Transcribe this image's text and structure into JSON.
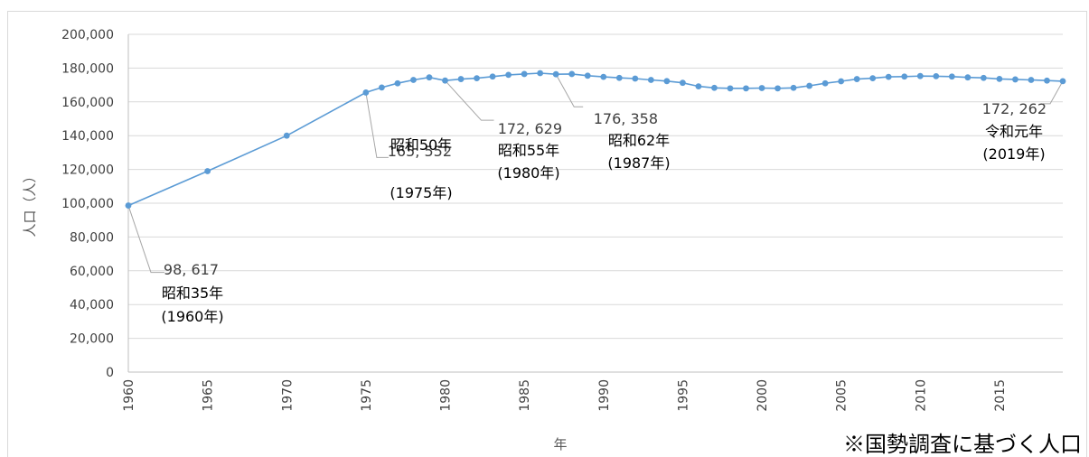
{
  "colors": {
    "series": "#5b9bd5",
    "grid": "#d9d9d9",
    "axis": "#bfbfbf",
    "text": "#404040"
  },
  "footnote": "※国勢調査に基づく人口",
  "chart_data": {
    "type": "line",
    "title": "",
    "xlabel": "年",
    "ylabel": "人口（人）",
    "xlim": [
      1960,
      2019
    ],
    "ylim": [
      0,
      200000
    ],
    "grid": true,
    "markers": true,
    "x_tick_labels": [
      "1960",
      "1965",
      "1970",
      "1975",
      "1980",
      "1985",
      "1990",
      "1995",
      "2000",
      "2005",
      "2010",
      "2015"
    ],
    "y_tick_labels": [
      "0",
      "20,000",
      "40,000",
      "60,000",
      "80,000",
      "100,000",
      "120,000",
      "140,000",
      "160,000",
      "180,000",
      "200,000"
    ],
    "series": [
      {
        "x": [
          1960,
          1965,
          1970,
          1975,
          1976,
          1977,
          1978,
          1979,
          1980,
          1981,
          1982,
          1983,
          1984,
          1985,
          1986,
          1987,
          1988,
          1989,
          1990,
          1991,
          1992,
          1993,
          1994,
          1995,
          1996,
          1997,
          1998,
          1999,
          2000,
          2001,
          2002,
          2003,
          2004,
          2005,
          2006,
          2007,
          2008,
          2009,
          2010,
          2011,
          2012,
          2013,
          2014,
          2015,
          2016,
          2017,
          2018,
          2019
        ],
        "y": [
          98617,
          119000,
          140000,
          165552,
          168500,
          171000,
          173000,
          174500,
          172629,
          173500,
          174000,
          175000,
          176000,
          176500,
          177000,
          176358,
          176500,
          175500,
          174800,
          174200,
          173800,
          173000,
          172300,
          171300,
          169200,
          168300,
          168000,
          168000,
          168200,
          168000,
          168300,
          169500,
          171000,
          172200,
          173500,
          174000,
          174800,
          175000,
          175300,
          175200,
          175000,
          174500,
          174200,
          173600,
          173300,
          173000,
          172600,
          172262
        ],
        "annotations": [
          {
            "x": 1960,
            "value": "98, 617",
            "era": "昭和35年",
            "year": "(1960年)"
          },
          {
            "x": 1975,
            "value": "165, 552",
            "era": "昭和50年",
            "year": "(1975年)"
          },
          {
            "x": 1980,
            "value": "172, 629",
            "era": "昭和55年",
            "year": "(1980年)"
          },
          {
            "x": 1987,
            "value": "176, 358",
            "era": "昭和62年",
            "year": "(1987年)"
          },
          {
            "x": 2019,
            "value": "172, 262",
            "era": "令和元年",
            "year": "(2019年)"
          }
        ]
      }
    ]
  }
}
